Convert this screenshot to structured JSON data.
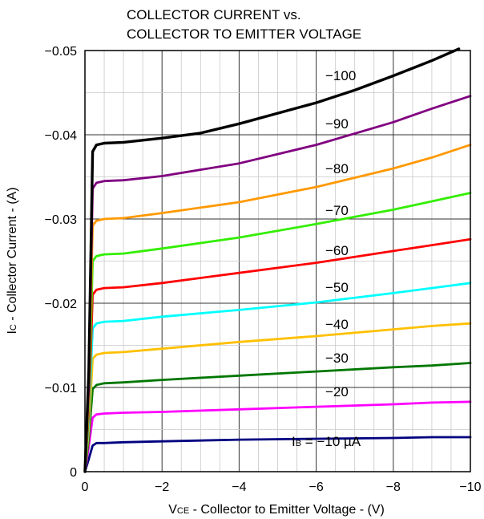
{
  "chart_data": {
    "type": "line",
    "title_lines": [
      "COLLECTOR CURRENT vs.",
      "COLLECTOR TO EMITTER VOLTAGE"
    ],
    "xlabel": {
      "main": "V",
      "sub": "CE",
      "rest": " - Collector to Emitter Voltage - (V)"
    },
    "ylabel": {
      "main": "I",
      "sub": "C",
      "rest": " - Collector Current - (A)"
    },
    "xlim": [
      0,
      -10
    ],
    "ylim": [
      0,
      -0.05
    ],
    "x_ticks": [
      {
        "value": 0,
        "label": "0"
      },
      {
        "value": -2,
        "label": "−2"
      },
      {
        "value": -4,
        "label": "−4"
      },
      {
        "value": -6,
        "label": "−6"
      },
      {
        "value": -8,
        "label": "−8"
      },
      {
        "value": -10,
        "label": "−10"
      }
    ],
    "y_ticks": [
      {
        "value": 0,
        "label": "0"
      },
      {
        "value": -0.01,
        "label": "−0.01"
      },
      {
        "value": -0.02,
        "label": "−0.02"
      },
      {
        "value": -0.03,
        "label": "−0.03"
      },
      {
        "value": -0.04,
        "label": "−0.04"
      },
      {
        "value": -0.05,
        "label": "−0.05"
      }
    ],
    "grid": true,
    "grid_minor_x": 0.5,
    "grid_minor_y": 0.005,
    "series": [
      {
        "name": "IB = −10 µA",
        "label_parts": {
          "main": "I",
          "sub": "B",
          "rest": " = −10 µA"
        },
        "color": "#000080",
        "x": [
          0,
          -0.1,
          -0.2,
          -0.3,
          -0.5,
          -1,
          -2,
          -4,
          -6,
          -8,
          -9,
          -10
        ],
        "y": [
          0,
          -0.0015,
          -0.0031,
          -0.0034,
          -0.0034,
          -0.0035,
          -0.0036,
          -0.0038,
          -0.0039,
          -0.004,
          -0.0041,
          -0.0041
        ]
      },
      {
        "name": "−20",
        "color": "#ff00ff",
        "x": [
          0,
          -0.1,
          -0.2,
          -0.3,
          -0.5,
          -1,
          -2,
          -4,
          -6,
          -8,
          -9,
          -10
        ],
        "y": [
          0,
          -0.003,
          -0.0064,
          -0.0068,
          -0.0069,
          -0.007,
          -0.0071,
          -0.0074,
          -0.0077,
          -0.008,
          -0.0082,
          -0.0083
        ]
      },
      {
        "name": "−30",
        "color": "#007700",
        "x": [
          0,
          -0.1,
          -0.2,
          -0.3,
          -0.5,
          -1,
          -2,
          -4,
          -6,
          -8,
          -9,
          -10
        ],
        "y": [
          0,
          -0.004,
          -0.0098,
          -0.0103,
          -0.0105,
          -0.0106,
          -0.0109,
          -0.0114,
          -0.0119,
          -0.0124,
          -0.0126,
          -0.0129
        ]
      },
      {
        "name": "−40",
        "color": "#ffc000",
        "x": [
          0,
          -0.1,
          -0.2,
          -0.3,
          -0.5,
          -1,
          -2,
          -4,
          -6,
          -8,
          -9,
          -10
        ],
        "y": [
          0,
          -0.005,
          -0.0134,
          -0.0139,
          -0.0141,
          -0.0142,
          -0.0146,
          -0.0154,
          -0.0161,
          -0.0169,
          -0.0173,
          -0.0176
        ]
      },
      {
        "name": "−50",
        "color": "#00ffff",
        "x": [
          0,
          -0.1,
          -0.2,
          -0.3,
          -0.5,
          -1,
          -2,
          -4,
          -6,
          -8,
          -9,
          -10
        ],
        "y": [
          0,
          -0.006,
          -0.017,
          -0.0176,
          -0.0178,
          -0.0179,
          -0.0184,
          -0.0192,
          -0.0201,
          -0.0212,
          -0.0218,
          -0.0224
        ]
      },
      {
        "name": "−60",
        "color": "#ff0000",
        "x": [
          0,
          -0.1,
          -0.2,
          -0.3,
          -0.5,
          -1,
          -2,
          -4,
          -6,
          -8,
          -9,
          -10
        ],
        "y": [
          0,
          -0.007,
          -0.021,
          -0.0216,
          -0.0218,
          -0.0219,
          -0.0224,
          -0.0236,
          -0.0248,
          -0.0262,
          -0.0269,
          -0.0276
        ]
      },
      {
        "name": "−70",
        "color": "#33ee00",
        "x": [
          0,
          -0.1,
          -0.2,
          -0.3,
          -0.5,
          -1,
          -2,
          -4,
          -6,
          -8,
          -9,
          -10
        ],
        "y": [
          0,
          -0.008,
          -0.025,
          -0.0256,
          -0.0258,
          -0.0259,
          -0.0265,
          -0.0278,
          -0.0294,
          -0.0311,
          -0.0321,
          -0.0331
        ]
      },
      {
        "name": "−80",
        "color": "#ff9900",
        "x": [
          0,
          -0.1,
          -0.2,
          -0.3,
          -0.5,
          -1,
          -2,
          -4,
          -6,
          -8,
          -9,
          -10
        ],
        "y": [
          0,
          -0.009,
          -0.0292,
          -0.0298,
          -0.03,
          -0.0301,
          -0.0307,
          -0.032,
          -0.0338,
          -0.036,
          -0.0373,
          -0.0388
        ]
      },
      {
        "name": "−90",
        "color": "#800080",
        "x": [
          0,
          -0.1,
          -0.2,
          -0.3,
          -0.5,
          -1,
          -2,
          -4,
          -6,
          -8,
          -9,
          -10
        ],
        "y": [
          0,
          -0.01,
          -0.0336,
          -0.0343,
          -0.0345,
          -0.0346,
          -0.0351,
          -0.0366,
          -0.0388,
          -0.0415,
          -0.0431,
          -0.0446
        ]
      },
      {
        "name": "−100",
        "color": "#000000",
        "x": [
          0,
          -0.1,
          -0.2,
          -0.3,
          -0.5,
          -1,
          -2,
          -3,
          -4,
          -6,
          -7,
          -8,
          -9,
          -9.7
        ],
        "y": [
          0,
          -0.012,
          -0.038,
          -0.0388,
          -0.039,
          -0.0391,
          -0.0396,
          -0.0402,
          -0.0413,
          -0.0438,
          -0.0453,
          -0.047,
          -0.0488,
          -0.0502
        ]
      }
    ]
  }
}
